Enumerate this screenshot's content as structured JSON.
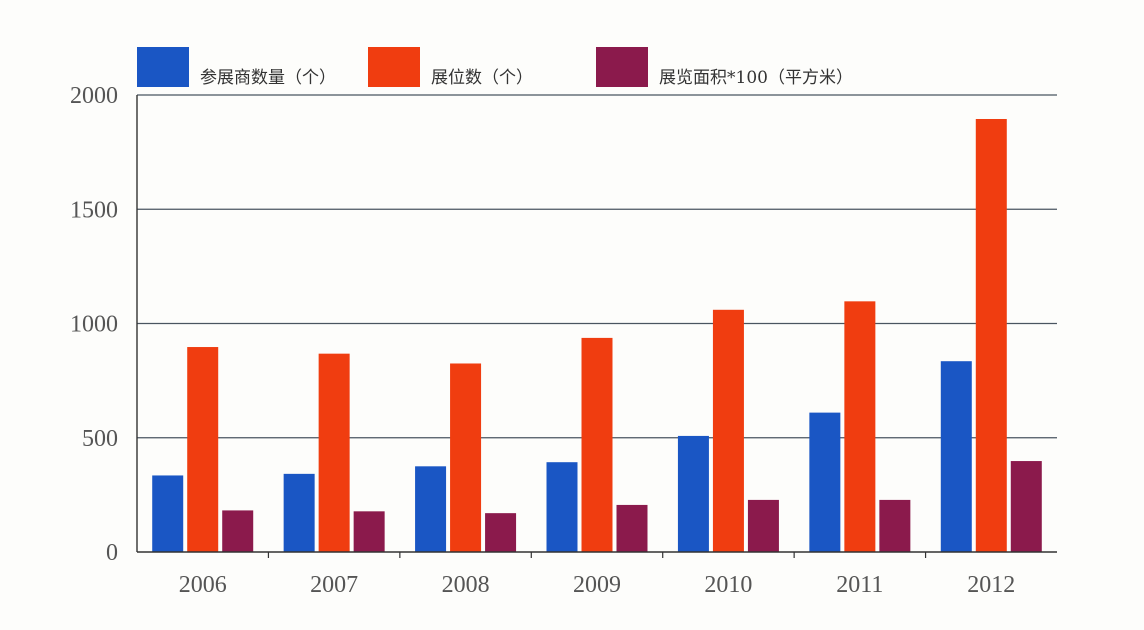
{
  "chart_data": {
    "type": "bar",
    "categories": [
      "2006",
      "2007",
      "2008",
      "2009",
      "2010",
      "2011",
      "2012"
    ],
    "series": [
      {
        "name": "参展商数量（个）",
        "color": "#1a56c4",
        "values": [
          335,
          342,
          375,
          393,
          508,
          610,
          835
        ]
      },
      {
        "name": "展位数（个）",
        "color": "#f03d10",
        "values": [
          897,
          868,
          825,
          937,
          1060,
          1097,
          1895
        ]
      },
      {
        "name": "展览面积*100（平方米）",
        "color": "#8b1a4c",
        "values": [
          182,
          178,
          170,
          206,
          228,
          228,
          398
        ]
      }
    ],
    "yticks": [
      "0",
      "500",
      "1000",
      "1500",
      "2000"
    ],
    "ylim": [
      0,
      2000
    ],
    "grid": true,
    "legend_position": "top"
  }
}
